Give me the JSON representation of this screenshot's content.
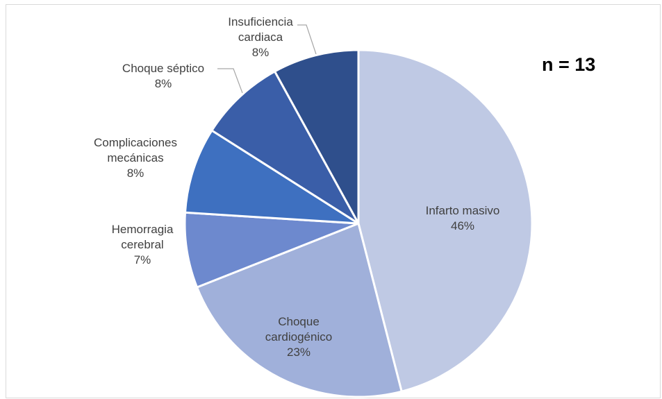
{
  "chart_data": {
    "type": "pie",
    "annotation": "n = 13",
    "categories": [
      "Infarto masivo",
      "Choque cardiogénico",
      "Hemorragia cerebral",
      "Complicaciones mecánicas",
      "Choque séptico",
      "Insuficiencia cardiaca"
    ],
    "values": [
      46,
      23,
      7,
      8,
      8,
      8
    ],
    "value_labels": [
      "46%",
      "23%",
      "7%",
      "8%",
      "8%",
      "8%"
    ],
    "colors": [
      "#bfc9e4",
      "#a0b0da",
      "#6d89ce",
      "#3e70c0",
      "#3a5ea8",
      "#2f4f8c"
    ]
  }
}
